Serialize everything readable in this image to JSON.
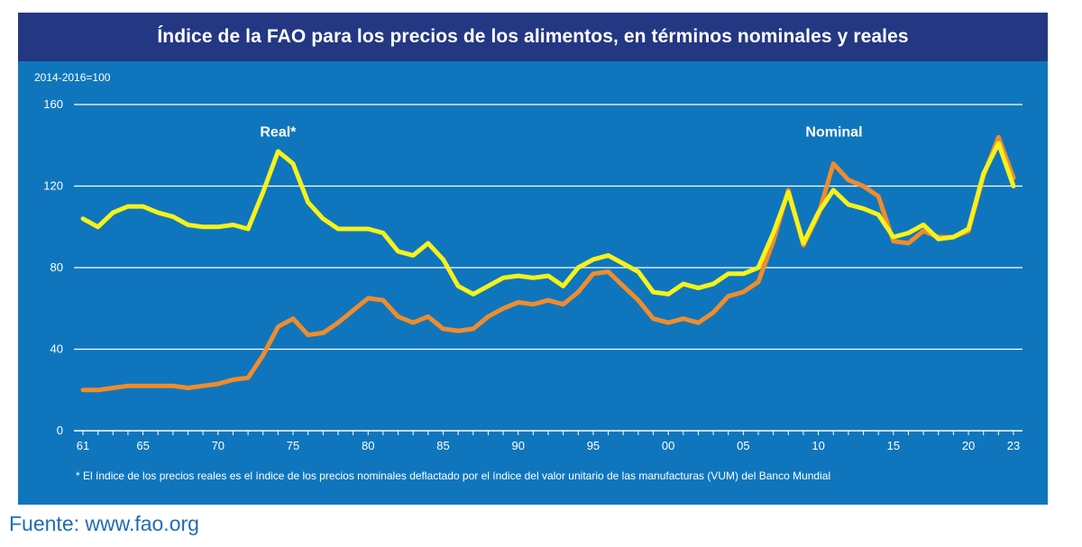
{
  "title": "Índice de la FAO para los precios de los alimentos, en términos nominales y reales",
  "footnote": "* El índice de los precios reales es el índice de los precios nominales deflactado por el índice del valor unitario de las manufacturas (VUM) del Banco Mundial",
  "source": "Fuente: www.fao.org",
  "colors": {
    "frame": "#0f76bd",
    "title_bar": "#243782",
    "real": "#f7f21a",
    "nominal": "#f08c2c",
    "grid": "#ffffff"
  },
  "chart_data": {
    "type": "line",
    "title": "Índice de la FAO para los precios de los alimentos, en términos nominales y reales",
    "ylabel": "2014-2016=100",
    "xlabel": "",
    "ylim": [
      0,
      160
    ],
    "xlim": [
      1961,
      2023
    ],
    "yticks": [
      0,
      40,
      80,
      120,
      160
    ],
    "xticks": [
      {
        "year": 1961,
        "label": "61"
      },
      {
        "year": 1965,
        "label": "65"
      },
      {
        "year": 1970,
        "label": "70"
      },
      {
        "year": 1975,
        "label": "75"
      },
      {
        "year": 1980,
        "label": "80"
      },
      {
        "year": 1985,
        "label": "85"
      },
      {
        "year": 1990,
        "label": "90"
      },
      {
        "year": 1995,
        "label": "95"
      },
      {
        "year": 2000,
        "label": "00"
      },
      {
        "year": 2005,
        "label": "05"
      },
      {
        "year": 2010,
        "label": "10"
      },
      {
        "year": 2015,
        "label": "15"
      },
      {
        "year": 2020,
        "label": "20"
      },
      {
        "year": 2023,
        "label": "23"
      }
    ],
    "grid": true,
    "x": [
      1961,
      1962,
      1963,
      1964,
      1965,
      1966,
      1967,
      1968,
      1969,
      1970,
      1971,
      1972,
      1973,
      1974,
      1975,
      1976,
      1977,
      1978,
      1979,
      1980,
      1981,
      1982,
      1983,
      1984,
      1985,
      1986,
      1987,
      1988,
      1989,
      1990,
      1991,
      1992,
      1993,
      1994,
      1995,
      1996,
      1997,
      1998,
      1999,
      2000,
      2001,
      2002,
      2003,
      2004,
      2005,
      2006,
      2007,
      2008,
      2009,
      2010,
      2011,
      2012,
      2013,
      2014,
      2015,
      2016,
      2017,
      2018,
      2019,
      2020,
      2021,
      2022,
      2023
    ],
    "series": [
      {
        "name": "Real*",
        "label_year": 1974,
        "label_value": 147,
        "values": [
          104,
          100,
          107,
          110,
          110,
          107,
          105,
          101,
          100,
          100,
          101,
          99,
          117,
          137,
          131,
          112,
          104,
          99,
          99,
          99,
          97,
          88,
          86,
          92,
          84,
          71,
          67,
          71,
          75,
          76,
          75,
          76,
          71,
          80,
          84,
          86,
          82,
          78,
          68,
          67,
          72,
          70,
          72,
          77,
          77,
          80,
          97,
          117,
          92,
          107,
          118,
          111,
          109,
          106,
          95,
          97,
          101,
          94,
          95,
          99,
          126,
          141,
          120
        ]
      },
      {
        "name": "Nominal",
        "label_year": 2009,
        "label_value": 147,
        "values": [
          20,
          20,
          21,
          22,
          22,
          22,
          22,
          21,
          22,
          23,
          25,
          26,
          37,
          51,
          55,
          47,
          48,
          53,
          59,
          65,
          64,
          56,
          53,
          56,
          50,
          49,
          50,
          56,
          60,
          63,
          62,
          64,
          62,
          68,
          77,
          78,
          71,
          64,
          55,
          53,
          55,
          53,
          58,
          66,
          68,
          73,
          93,
          118,
          91,
          106,
          131,
          123,
          120,
          115,
          93,
          92,
          98,
          95,
          95,
          98,
          125,
          144,
          124
        ]
      }
    ]
  }
}
